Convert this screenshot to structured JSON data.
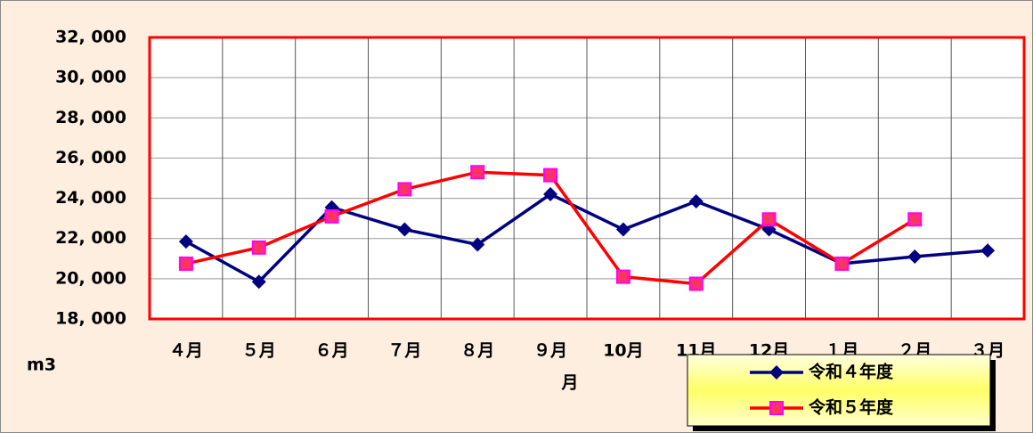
{
  "chart_data": {
    "type": "line",
    "categories": [
      "４月",
      "５月",
      "６月",
      "７月",
      "８月",
      "９月",
      "10月",
      "11月",
      "12月",
      "１月",
      "２月",
      "３月"
    ],
    "series": [
      {
        "name": "令和４年度",
        "color": "#000080",
        "values": [
          21850,
          19850,
          23550,
          22450,
          21700,
          24200,
          22450,
          23850,
          22450,
          20750,
          21100,
          21400
        ]
      },
      {
        "name": "令和５年度",
        "color": "#ff0000",
        "values": [
          20750,
          21550,
          23100,
          24450,
          25300,
          25150,
          20100,
          19750,
          22950,
          20750,
          22950,
          null
        ]
      }
    ],
    "ylim": [
      18000,
      32000
    ],
    "yticks": [
      {
        "value": 18000,
        "label": "18, 000"
      },
      {
        "value": 20000,
        "label": "20, 000"
      },
      {
        "value": 22000,
        "label": "22, 000"
      },
      {
        "value": 24000,
        "label": "24, 000"
      },
      {
        "value": 26000,
        "label": "26, 000"
      },
      {
        "value": 28000,
        "label": "28, 000"
      },
      {
        "value": 30000,
        "label": "30, 000"
      },
      {
        "value": 32000,
        "label": "32, 000"
      }
    ],
    "ylabel": "m3",
    "xlabel": "月",
    "grid": true,
    "legend": "bottom-right"
  }
}
